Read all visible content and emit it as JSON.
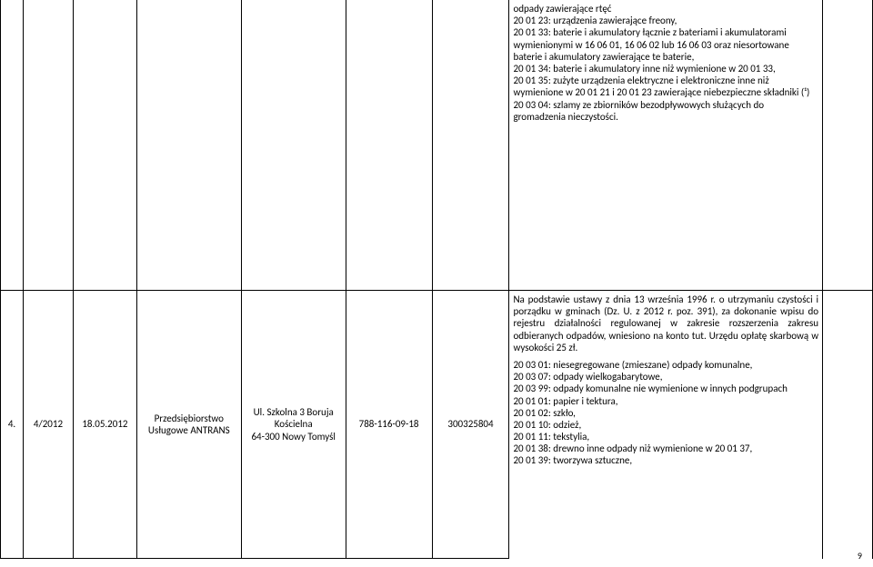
{
  "row1": {
    "text": "odpady zawierające rtęć\n20 01 23: urządzenia zawierające freony,\n20 01 33: baterie i akumulatory łącznie z bateriami i akumulatorami wymienionymi w 16 06 01, 16 06 02 lub 16 06 03 oraz niesortowane baterie i akumulatory zawierające te baterie,\n20 01 34: baterie i akumulatory inne niż wymienione w 20 01 33,\n20 01 35: zużyte urządzenia elektryczne i elektroniczne inne niż wymienione w 20 01 21 i 20 01 23 zawierające niebezpieczne składniki (¹)\n20 03 04: szlamy ze zbiorników bezodpływowych służących do gromadzenia nieczystości."
  },
  "row2": {
    "c0": "4.",
    "c1": "4/2012",
    "c2": "18.05.2012",
    "c3": "Przedsiębiorstwo Usługowe ANTRANS",
    "c4": "Ul. Szkolna 3 Boruja Kościelna\n64-300 Nowy Tomyśl",
    "c5": "788-116-09-18",
    "c6": "300325804",
    "c7p1": "Na podstawie ustawy z dnia 13 września 1996 r.  o utrzymaniu czystości i porządku w gminach (Dz. U. z 2012 r. poz. 391), za dokonanie wpisu do rejestru działalności regulowanej w zakresie rozszerzenia zakresu odbieranych odpadów, wniesiono na konto tut. Urzędu opłatę skarbową  w wysokości 25 zł.",
    "c7p2": "20 03 01: niesegregowane (zmieszane) odpady komunalne,\n20 03 07: odpady wielkogabarytowe,\n20 03 99: odpady komunalne nie wymienione w innych podgrupach\n20 01 01: papier i tektura,\n20 01 02: szkło,\n20 01 10: odzież,\n20 01 11: tekstylia,\n20 01 38: drewno inne odpady niż wymienione w 20 01 37,\n20 01 39: tworzywa sztuczne,"
  },
  "pageNumber": "9"
}
